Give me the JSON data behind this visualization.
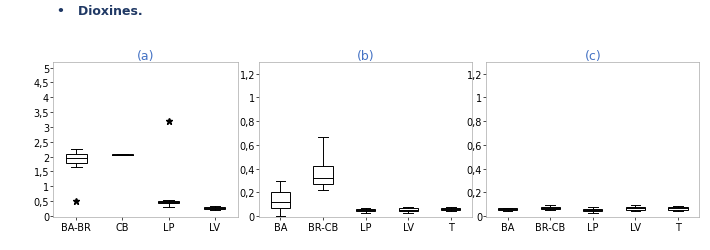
{
  "title_text": "•   Dioxines.",
  "title_color": "#1F3864",
  "subtitle_a": "(a)",
  "subtitle_b": "(b)",
  "subtitle_c": "(c)",
  "subtitle_color": "#4472C4",
  "panel_a": {
    "categories": [
      "BA-BR",
      "CB",
      "LP",
      "LV"
    ],
    "boxes": [
      {
        "q1": 1.8,
        "median": 1.95,
        "q3": 2.1,
        "whislo": 1.65,
        "whishi": 2.25,
        "fliers": [
          0.5
        ]
      },
      {
        "q1": 2.05,
        "median": 2.07,
        "q3": 2.09,
        "whislo": 2.05,
        "whishi": 2.09,
        "fliers": []
      },
      {
        "q1": 0.42,
        "median": 0.46,
        "q3": 0.5,
        "whislo": 0.3,
        "whishi": 0.55,
        "fliers": [
          3.2
        ]
      },
      {
        "q1": 0.24,
        "median": 0.27,
        "q3": 0.3,
        "whislo": 0.2,
        "whishi": 0.35,
        "fliers": []
      }
    ],
    "yticks": [
      0,
      0.5,
      1,
      1.5,
      2,
      2.5,
      3,
      3.5,
      4,
      4.5,
      5
    ],
    "ytick_labels": [
      "0",
      "0,5",
      "1",
      "1,5",
      "2",
      "2,5",
      "3",
      "3,5",
      "4",
      "4,5",
      "5"
    ],
    "ylim": [
      -0.05,
      5.2
    ]
  },
  "panel_b": {
    "categories": [
      "BA",
      "BR-CB",
      "LP",
      "LV",
      "T"
    ],
    "boxes": [
      {
        "q1": 0.07,
        "median": 0.12,
        "q3": 0.2,
        "whislo": 0.0,
        "whishi": 0.3,
        "fliers": []
      },
      {
        "q1": 0.27,
        "median": 0.32,
        "q3": 0.42,
        "whislo": 0.22,
        "whishi": 0.67,
        "fliers": []
      },
      {
        "q1": 0.04,
        "median": 0.05,
        "q3": 0.06,
        "whislo": 0.03,
        "whishi": 0.07,
        "fliers": []
      },
      {
        "q1": 0.04,
        "median": 0.055,
        "q3": 0.065,
        "whislo": 0.03,
        "whishi": 0.075,
        "fliers": []
      },
      {
        "q1": 0.05,
        "median": 0.06,
        "q3": 0.07,
        "whislo": 0.04,
        "whishi": 0.08,
        "fliers": []
      }
    ],
    "yticks": [
      0,
      0.2,
      0.4,
      0.6,
      0.8,
      1.0,
      1.2
    ],
    "ytick_labels": [
      "0",
      "0,2",
      "0,4",
      "0,6",
      "0,8",
      "1",
      "1,2"
    ],
    "ylim": [
      -0.01,
      1.3
    ]
  },
  "panel_c": {
    "categories": [
      "BA",
      "BR-CB",
      "LP",
      "LV",
      "T"
    ],
    "boxes": [
      {
        "q1": 0.05,
        "median": 0.06,
        "q3": 0.065,
        "whislo": 0.04,
        "whishi": 0.07,
        "fliers": []
      },
      {
        "q1": 0.06,
        "median": 0.07,
        "q3": 0.08,
        "whislo": 0.05,
        "whishi": 0.09,
        "fliers": []
      },
      {
        "q1": 0.04,
        "median": 0.05,
        "q3": 0.06,
        "whislo": 0.025,
        "whishi": 0.075,
        "fliers": []
      },
      {
        "q1": 0.055,
        "median": 0.07,
        "q3": 0.08,
        "whislo": 0.04,
        "whishi": 0.095,
        "fliers": []
      },
      {
        "q1": 0.055,
        "median": 0.065,
        "q3": 0.075,
        "whislo": 0.045,
        "whishi": 0.085,
        "fliers": []
      }
    ],
    "yticks": [
      0,
      0.2,
      0.4,
      0.6,
      0.8,
      1.0,
      1.2
    ],
    "ytick_labels": [
      "0",
      "0,2",
      "0,4",
      "0,6",
      "0,8",
      "1",
      "1,2"
    ],
    "ylim": [
      -0.01,
      1.3
    ]
  },
  "fontsize_ticks": 7,
  "fontsize_subtitle": 9,
  "fontsize_title": 9,
  "box_width": 0.45,
  "cap_ratio": 0.5,
  "linewidth": 0.7
}
